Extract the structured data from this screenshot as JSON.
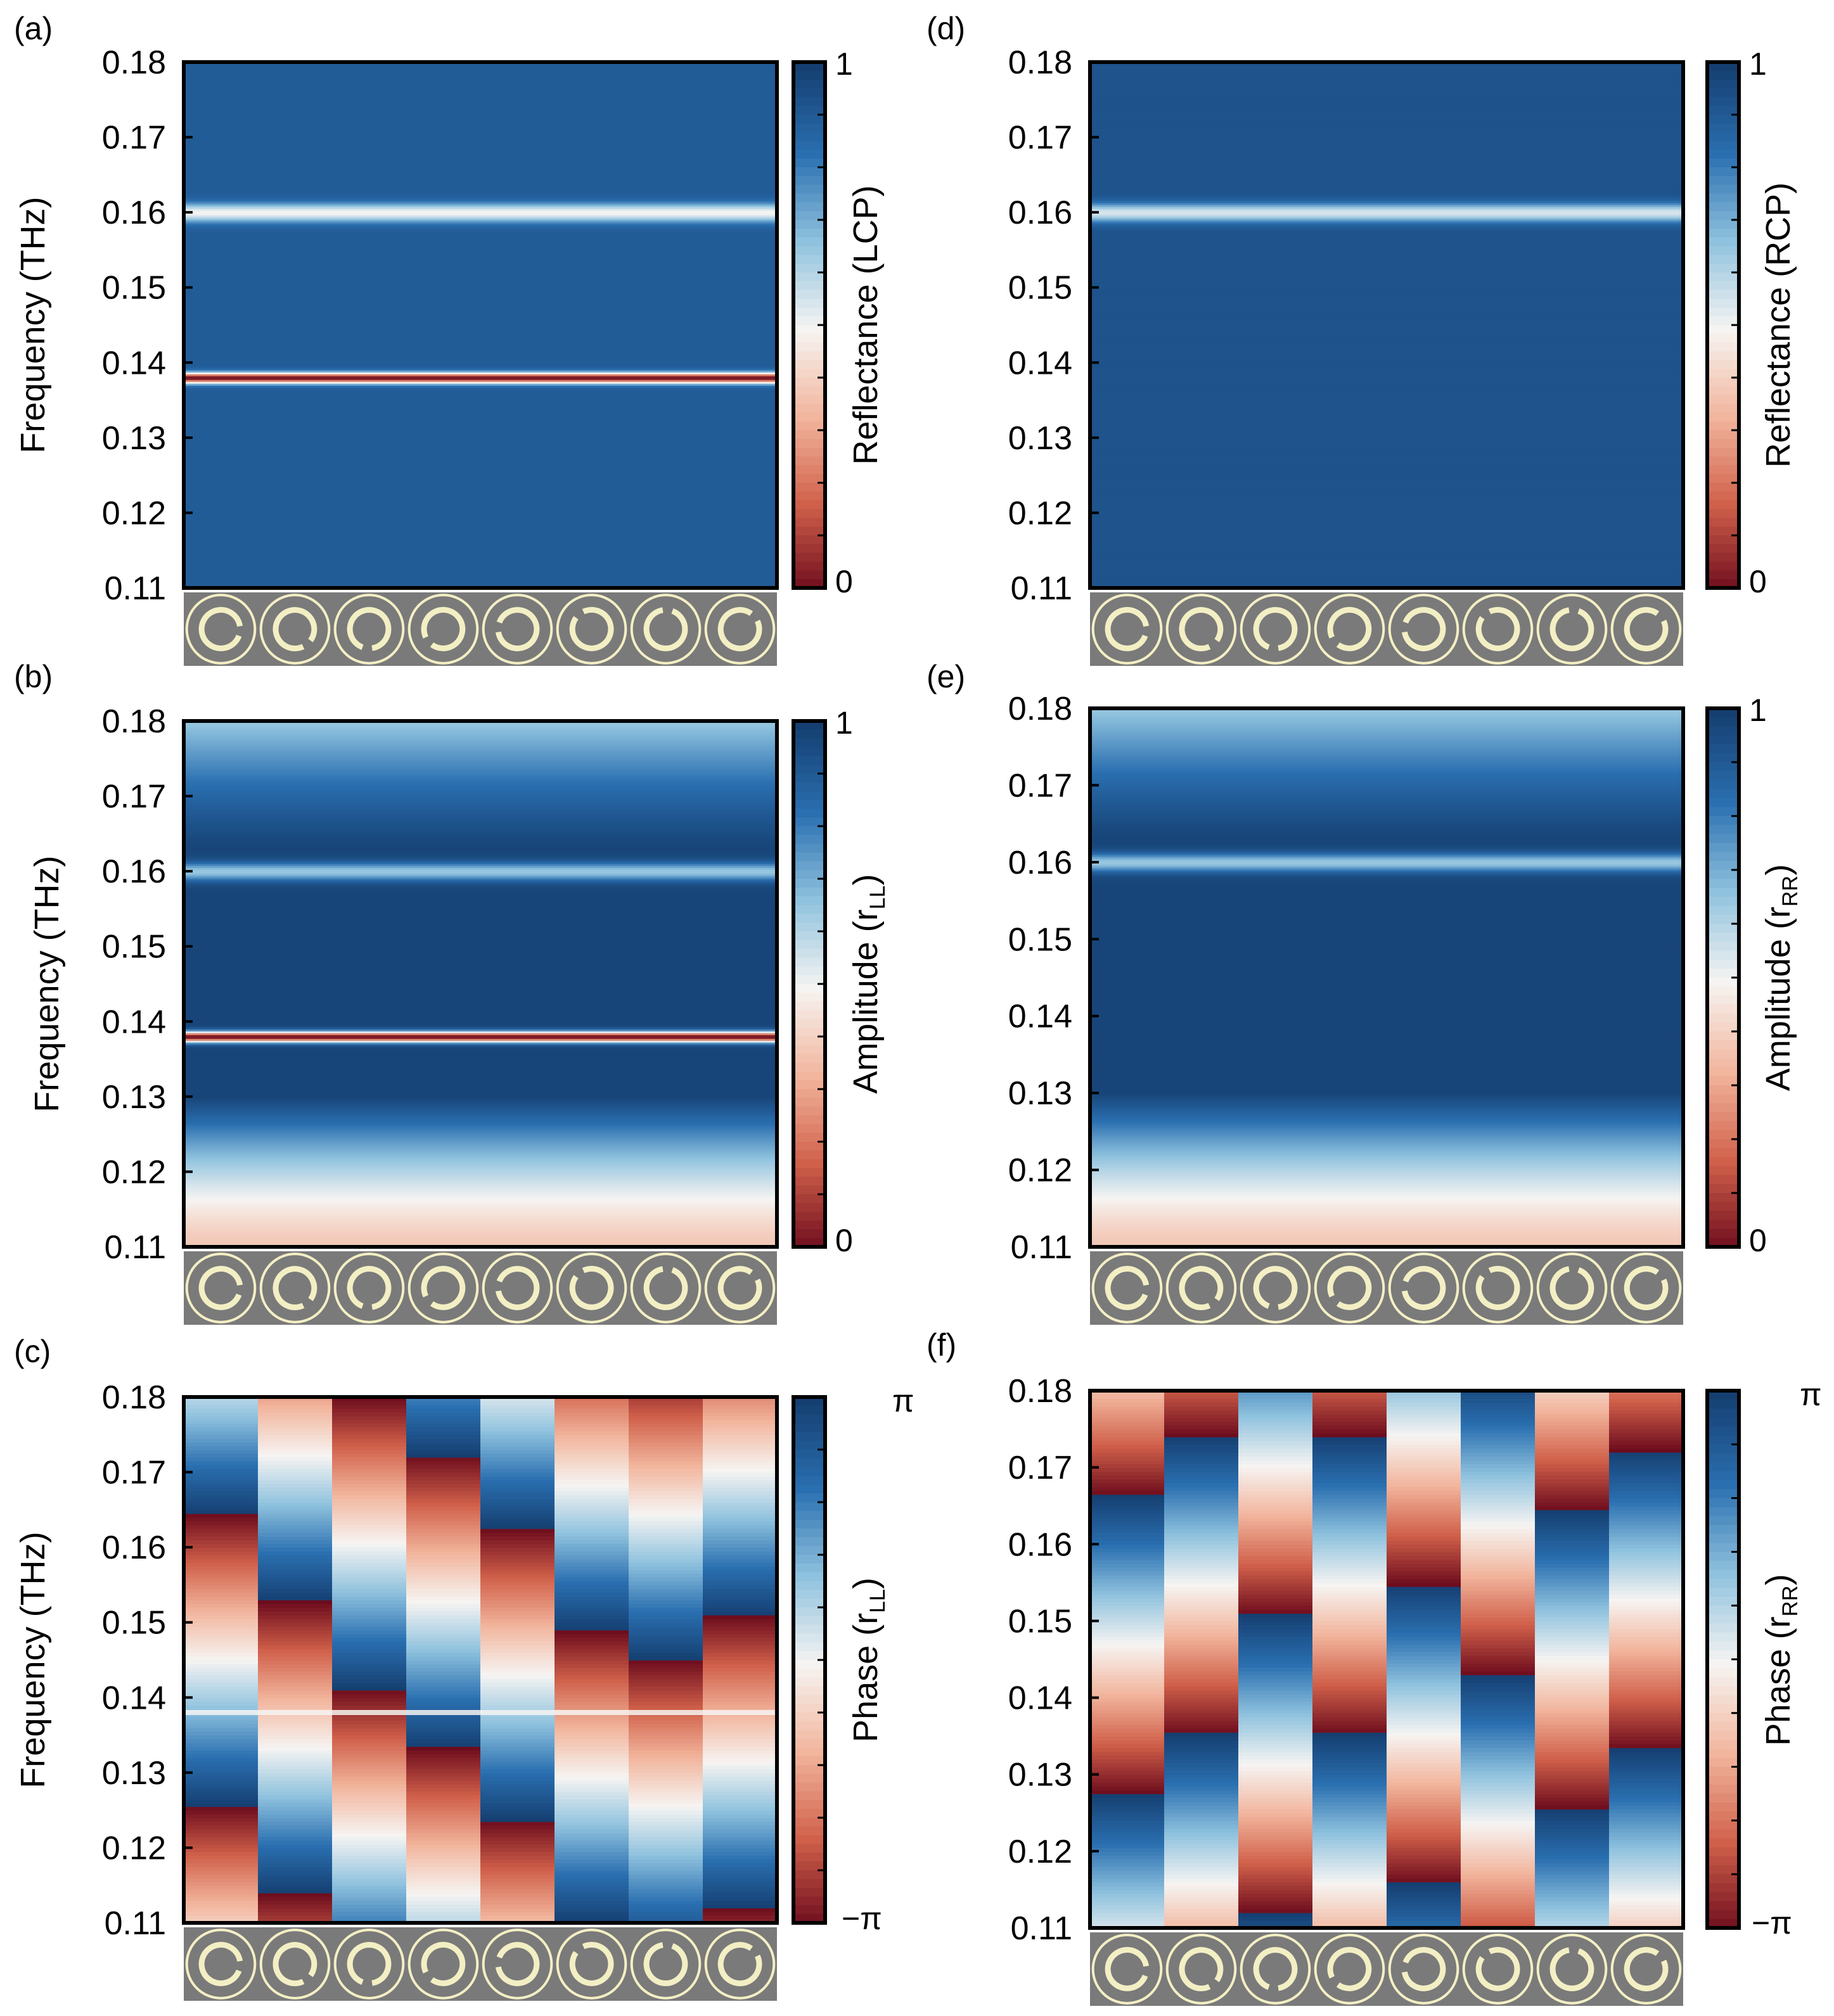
{
  "figure": {
    "colors": {
      "deep_blue": "#0f2f57",
      "dark_blue": "#153f71",
      "mid_blue": "#2a6fb0",
      "light_blue": "#8fc2de",
      "white": "#f6f4f2",
      "light_red": "#f2b59d",
      "mid_red": "#d0604a",
      "dark_red": "#6d0c1d",
      "substrate": "#7a7a7a",
      "ring": "#f3efc4"
    },
    "unit_cell_count": 8
  },
  "chart_data": [
    {
      "id": "a",
      "panel_label": "(a)",
      "type": "heatmap",
      "kind": "reflectance",
      "ylabel": "Frequency (THz)",
      "ylim": [
        0.11,
        0.18
      ],
      "yticks": [
        "0.18",
        "0.17",
        "0.16",
        "0.15",
        "0.14",
        "0.13",
        "0.12",
        "0.11"
      ],
      "colorbar": {
        "label": "Reflectance (LCP)",
        "max_label": "1",
        "min_label": "0"
      },
      "base_value": 0.9,
      "bands": [
        {
          "freq": 0.16,
          "value": 0.5,
          "width": 0.0012
        },
        {
          "freq": 0.138,
          "value": 0.0,
          "width": 0.0007
        }
      ]
    },
    {
      "id": "b",
      "panel_label": "(b)",
      "type": "heatmap",
      "kind": "amplitude",
      "ylabel": "Frequency (THz)",
      "ylim": [
        0.11,
        0.18
      ],
      "yticks": [
        "0.18",
        "0.17",
        "0.16",
        "0.15",
        "0.14",
        "0.13",
        "0.12",
        "0.11"
      ],
      "colorbar": {
        "label_prefix": "Amplitude (r",
        "label_sub": "LL",
        "label_suffix": ")",
        "max_label": "1",
        "min_label": "0"
      },
      "bands": [
        {
          "freq": 0.16,
          "value": 0.65,
          "width": 0.0012
        },
        {
          "freq": 0.138,
          "value": 0.0,
          "width": 0.0007
        }
      ]
    },
    {
      "id": "c",
      "panel_label": "(c)",
      "type": "heatmap",
      "kind": "phase",
      "ylabel": "Frequency (THz)",
      "ylim": [
        0.11,
        0.18
      ],
      "yticks": [
        "0.18",
        "0.17",
        "0.16",
        "0.15",
        "0.14",
        "0.13",
        "0.12",
        "0.11"
      ],
      "colorbar": {
        "label_prefix": "Phase (r",
        "label_sub": "LL",
        "label_suffix": ")",
        "max_label": "π",
        "min_label": "−π"
      },
      "phase_at_min_freq": [
        0.4,
        0.1,
        -0.2,
        0.6,
        0.35,
        0.0,
        -0.1,
        0.05
      ],
      "phase_slope": -1.8,
      "discontinuity": {
        "freq": 0.138,
        "width": 0.0006
      }
    },
    {
      "id": "d",
      "panel_label": "(d)",
      "type": "heatmap",
      "kind": "reflectance",
      "ylabel": "",
      "ylim": [
        0.11,
        0.18
      ],
      "yticks": [
        "0.18",
        "0.17",
        "0.16",
        "0.15",
        "0.14",
        "0.13",
        "0.12",
        "0.11"
      ],
      "colorbar": {
        "label": "Reflectance (RCP)",
        "max_label": "1",
        "min_label": "0"
      },
      "base_value": 0.93,
      "bands": [
        {
          "freq": 0.16,
          "value": 0.55,
          "width": 0.0012
        }
      ]
    },
    {
      "id": "e",
      "panel_label": "(e)",
      "type": "heatmap",
      "kind": "amplitude",
      "ylabel": "",
      "ylim": [
        0.11,
        0.18
      ],
      "yticks": [
        "0.18",
        "0.17",
        "0.16",
        "0.15",
        "0.14",
        "0.13",
        "0.12",
        "0.11"
      ],
      "colorbar": {
        "label_prefix": "Amplitude (r",
        "label_sub": "RR",
        "label_suffix": ")",
        "max_label": "1",
        "min_label": "0"
      },
      "bands": [
        {
          "freq": 0.16,
          "value": 0.65,
          "width": 0.0012
        }
      ]
    },
    {
      "id": "f",
      "panel_label": "(f)",
      "type": "heatmap",
      "kind": "phase",
      "ylabel": "",
      "ylim": [
        0.11,
        0.18
      ],
      "yticks": [
        "0.18",
        "0.17",
        "0.16",
        "0.15",
        "0.14",
        "0.13",
        "0.12",
        "0.11"
      ],
      "colorbar": {
        "label_prefix": "Phase (r",
        "label_sub": "RR",
        "label_suffix": ")",
        "max_label": "π",
        "min_label": "−π"
      },
      "phase_at_min_freq": [
        -0.45,
        0.35,
        -0.05,
        0.35,
        -0.15,
        0.15,
        0.6,
        0.4
      ],
      "phase_slope": 1.8
    }
  ]
}
